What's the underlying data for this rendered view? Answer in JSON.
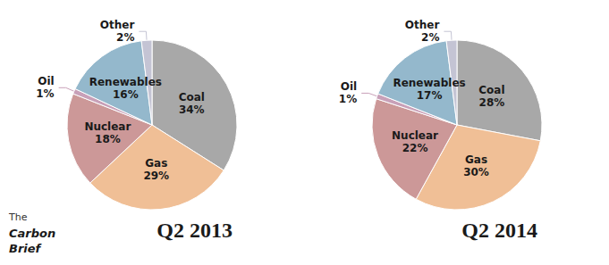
{
  "chart_data": [
    {
      "type": "pie",
      "title": "Q2 2013",
      "categories": [
        "Coal",
        "Gas",
        "Nuclear",
        "Oil",
        "Renewables",
        "Other"
      ],
      "values": [
        34,
        29,
        18,
        1,
        16,
        2
      ],
      "value_labels": [
        "34%",
        "29%",
        "18%",
        "1%",
        "16%",
        "2%"
      ],
      "colors": [
        "#a8a8a8",
        "#f0bf96",
        "#cc9898",
        "#c8a0b8",
        "#94b8cc",
        "#c4c4d4"
      ],
      "data_labels": true,
      "annotations": [
        "The",
        "Carbon",
        "Brief"
      ]
    },
    {
      "type": "pie",
      "title": "Q2 2014",
      "categories": [
        "Coal",
        "Gas",
        "Nuclear",
        "Oil",
        "Renewables",
        "Other"
      ],
      "values": [
        28,
        30,
        22,
        1,
        17,
        2
      ],
      "value_labels": [
        "28%",
        "30%",
        "22%",
        "1%",
        "17%",
        "2%"
      ],
      "colors": [
        "#a8a8a8",
        "#f0bf96",
        "#cc9898",
        "#c8a0b8",
        "#94b8cc",
        "#c4c4d4"
      ],
      "data_labels": true
    }
  ]
}
